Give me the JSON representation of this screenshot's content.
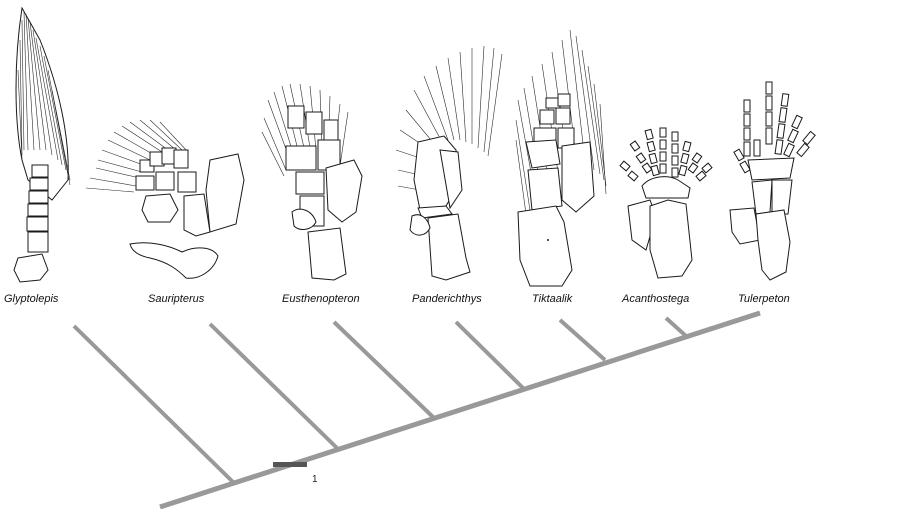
{
  "figure": {
    "taxa": [
      {
        "name": "Glyptolepis",
        "icon": "lobe-fin-icon"
      },
      {
        "name": "Sauripterus",
        "icon": "fan-fin-icon"
      },
      {
        "name": "Eusthenopteron",
        "icon": "fin-skeleton-icon"
      },
      {
        "name": "Panderichthys",
        "icon": "fin-skeleton-icon"
      },
      {
        "name": "Tiktaalik",
        "icon": "fin-skeleton-icon"
      },
      {
        "name": "Acanthostega",
        "icon": "eight-digit-limb-icon"
      },
      {
        "name": "Tulerpeton",
        "icon": "six-digit-limb-icon"
      }
    ],
    "tree_color": "#999999",
    "scale_bar": {
      "label": "1",
      "color": "#555555"
    }
  }
}
